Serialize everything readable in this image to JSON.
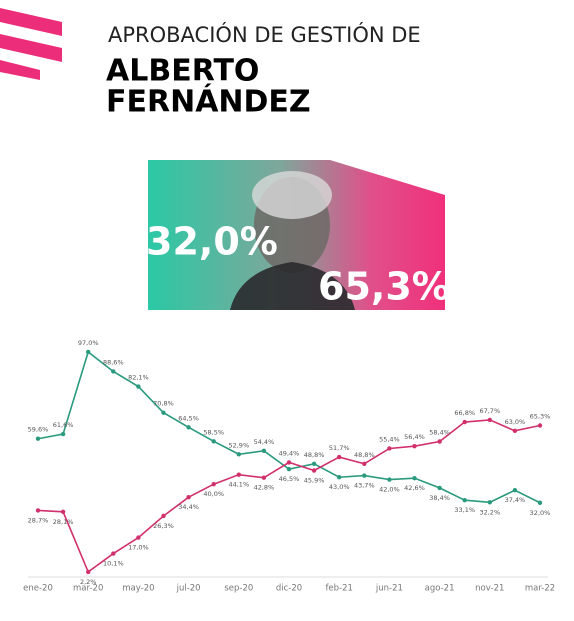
{
  "header": {
    "kicker": "APROBACIÓN DE GESTIÓN DE",
    "name_lines": [
      "ALBERTO",
      "FERNÁNDEZ"
    ]
  },
  "banner": {
    "approval": "32,0%",
    "disapproval": "65,3%"
  },
  "chart_data": {
    "type": "line",
    "categories": [
      "ene-20",
      null,
      "mar-20",
      null,
      "may-20",
      null,
      "jul-20",
      null,
      "sep-20",
      null,
      "dic-20",
      null,
      "feb-21",
      null,
      "jun-21",
      null,
      "ago-21",
      null,
      "nov-21",
      null,
      "mar-22"
    ],
    "ylim": [
      0,
      100
    ],
    "series": [
      {
        "color": "#2a9a7e",
        "values": [
          59.6,
          61.6,
          97.0,
          88.6,
          82.1,
          70.8,
          64.5,
          58.5,
          52.9,
          54.4,
          46.5,
          48.8,
          43.0,
          43.7,
          42.0,
          42.6,
          38.4,
          33.1,
          32.2,
          37.4,
          32.0
        ],
        "value_labels": [
          "59,6%",
          "61,6%",
          "97,0%",
          "88,6%",
          "82,1%",
          "70,8%",
          "64,5%",
          "58,5%",
          "52,9%",
          "54,4%",
          "46,5%",
          "48,8%",
          "43,0%",
          "43,7%",
          "42,0%",
          "42,6%",
          "38,4%",
          "33,1%",
          "32,2%",
          "37,4%",
          "32,0%"
        ]
      },
      {
        "color": "#d1306c",
        "values": [
          28.7,
          28.1,
          2.2,
          10.1,
          17.0,
          26.3,
          34.4,
          40.0,
          44.1,
          42.8,
          49.4,
          45.9,
          51.7,
          48.8,
          55.4,
          56.4,
          58.4,
          66.8,
          67.7,
          63.0,
          65.3
        ],
        "value_labels": [
          "28,7%",
          "28,1%",
          "2,2%",
          "10,1%",
          "17,0%",
          "26,3%",
          "34,4%",
          "40,0%",
          "44,1%",
          "42,8%",
          "49,4%",
          "45,9%",
          "51,7%",
          "48,8%",
          "55,4%",
          "56,4%",
          "58,4%",
          "66,8%",
          "67,7%",
          "63,0%",
          "65,3%"
        ]
      }
    ]
  }
}
